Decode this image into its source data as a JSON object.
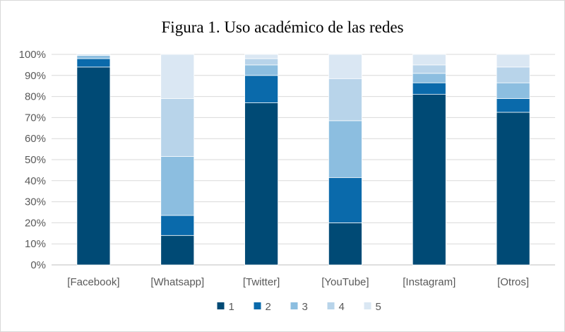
{
  "chart_data": {
    "type": "bar",
    "stacked": true,
    "percent": true,
    "title": "Figura 1. Uso académico de las redes",
    "xlabel": "",
    "ylabel": "",
    "ylim": [
      0,
      100
    ],
    "y_ticks": [
      "0%",
      "10%",
      "20%",
      "30%",
      "40%",
      "50%",
      "60%",
      "70%",
      "80%",
      "90%",
      "100%"
    ],
    "grid": true,
    "legend_position": "bottom",
    "categories": [
      "[Facebook]",
      "[Whatsapp]",
      "[Twitter]",
      "[YouTube]",
      "[Instagram]",
      "[Otros]"
    ],
    "series": [
      {
        "name": "1",
        "color": "#004a75",
        "values": [
          94,
          14,
          77,
          20,
          81,
          72.5
        ]
      },
      {
        "name": "2",
        "color": "#0a6aab",
        "values": [
          4,
          9.5,
          13,
          21.5,
          5.5,
          6.5
        ]
      },
      {
        "name": "3",
        "color": "#8cbee0",
        "values": [
          1.5,
          28,
          5,
          27,
          4.5,
          7.5
        ]
      },
      {
        "name": "4",
        "color": "#b8d4ea",
        "values": [
          0.5,
          27.5,
          3,
          20,
          4,
          7.5
        ]
      },
      {
        "name": "5",
        "color": "#dae7f3",
        "values": [
          0,
          21,
          2,
          11.5,
          5,
          6
        ]
      }
    ]
  }
}
